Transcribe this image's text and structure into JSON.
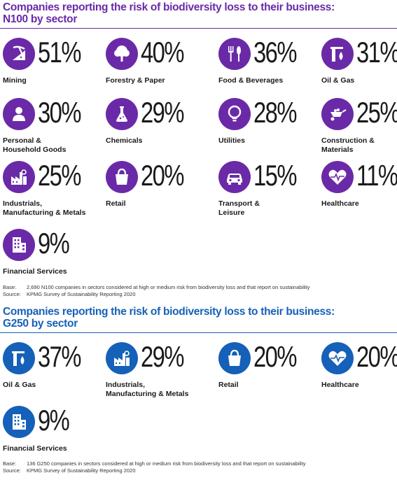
{
  "colors": {
    "n100": "#6a2aa8",
    "g250": "#1560b8"
  },
  "chart_data": [
    {
      "type": "table",
      "title": "Companies reporting the risk of biodiversity loss to their business: N100 by sector",
      "categories": [
        "Mining",
        "Forestry & Paper",
        "Food & Beverages",
        "Oil & Gas",
        "Personal & Household Goods",
        "Chemicals",
        "Utilities",
        "Construction & Materials",
        "Industrials, Manufacturing & Metals",
        "Retail",
        "Transport & Leisure",
        "Healthcare",
        "Financial Services"
      ],
      "values": [
        51,
        40,
        36,
        31,
        30,
        29,
        28,
        25,
        25,
        20,
        15,
        11,
        9
      ],
      "unit": "%"
    },
    {
      "type": "table",
      "title": "Companies reporting the risk of biodiversity loss to their business: G250 by sector",
      "categories": [
        "Oil & Gas",
        "Industrials, Manufacturing & Metals",
        "Retail",
        "Healthcare",
        "Financial Services"
      ],
      "values": [
        37,
        29,
        20,
        20,
        9
      ],
      "unit": "%"
    }
  ],
  "n100": {
    "title_line1": "Companies reporting the risk of biodiversity loss to their business:",
    "title_line2": "N100 by sector",
    "items": [
      {
        "icon": "pickaxe-icon",
        "pct": "51%",
        "label": "Mining"
      },
      {
        "icon": "tree-icon",
        "pct": "40%",
        "label": "Forestry & Paper"
      },
      {
        "icon": "cutlery-icon",
        "pct": "36%",
        "label": "Food & Beverages"
      },
      {
        "icon": "oil-drop-icon",
        "pct": "31%",
        "label": "Oil & Gas"
      },
      {
        "icon": "person-icon",
        "pct": "30%",
        "label": "Personal &\nHousehold Goods"
      },
      {
        "icon": "flask-icon",
        "pct": "29%",
        "label": "Chemicals"
      },
      {
        "icon": "lightbulb-icon",
        "pct": "28%",
        "label": "Utilities"
      },
      {
        "icon": "wheelbarrow-icon",
        "pct": "25%",
        "label": "Construction &\nMaterials"
      },
      {
        "icon": "factory-icon",
        "pct": "25%",
        "label": "Industrials,\nManufacturing & Metals"
      },
      {
        "icon": "shopping-bag-icon",
        "pct": "20%",
        "label": "Retail"
      },
      {
        "icon": "car-icon",
        "pct": "15%",
        "label": "Transport &\nLeisure"
      },
      {
        "icon": "heart-pulse-icon",
        "pct": "11%",
        "label": "Healthcare"
      },
      {
        "icon": "building-icon",
        "pct": "9%",
        "label": "Financial Services"
      }
    ],
    "base_label": "Base:",
    "base_text": "2,690 N100 companies in sectors considered at high or medium risk from biodiversity loss and that report on sustainability",
    "source_label": "Source:",
    "source_text": "KPMG Survey of Sustainability Reporting 2020"
  },
  "g250": {
    "title_line1": "Companies reporting the risk of biodiversity loss to their business:",
    "title_line2": "G250 by sector",
    "items": [
      {
        "icon": "oil-drop-icon",
        "pct": "37%",
        "label": "Oil & Gas"
      },
      {
        "icon": "factory-icon",
        "pct": "29%",
        "label": "Industrials,\nManufacturing & Metals"
      },
      {
        "icon": "shopping-bag-icon",
        "pct": "20%",
        "label": "Retail"
      },
      {
        "icon": "heart-pulse-icon",
        "pct": "20%",
        "label": "Healthcare"
      },
      {
        "icon": "building-icon",
        "pct": "9%",
        "label": "Financial Services"
      }
    ],
    "base_label": "Base:",
    "base_text": "136 G250 companies in sectors considered at high or medium risk from biodiversity loss and that report on sustainability",
    "source_label": "Source:",
    "source_text": "KPMG Survey of Sustainability Reporting 2020"
  }
}
